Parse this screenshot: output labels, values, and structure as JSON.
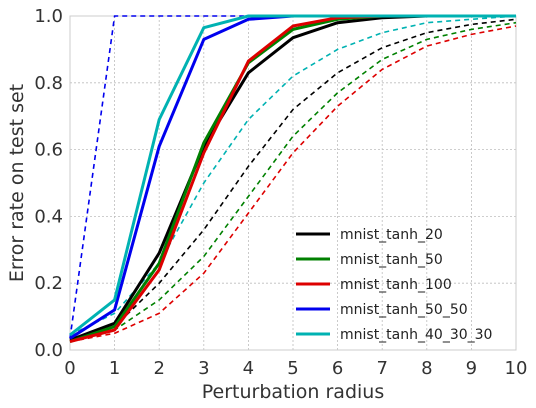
{
  "chart_data": {
    "type": "line",
    "xlabel": "Perturbation radius",
    "ylabel": "Error rate on test set",
    "xlim": [
      0,
      10
    ],
    "ylim": [
      0,
      1
    ],
    "x_ticks": [
      "0",
      "1",
      "2",
      "3",
      "4",
      "5",
      "6",
      "7",
      "8",
      "9",
      "10"
    ],
    "y_ticks": [
      "0.0",
      "0.2",
      "0.4",
      "0.6",
      "0.8",
      "1.0"
    ],
    "grid": true,
    "legend_position": "lower-right",
    "x": [
      0,
      1,
      2,
      3,
      4,
      5,
      6,
      7,
      8,
      9,
      10
    ],
    "series": [
      {
        "name": "mnist_tanh_20",
        "color": "#000000",
        "values": [
          0.03,
          0.08,
          0.29,
          0.61,
          0.83,
          0.935,
          0.98,
          0.995,
          1.0,
          1.0,
          1.0
        ],
        "dashed_values": [
          0.03,
          0.07,
          0.2,
          0.36,
          0.55,
          0.72,
          0.83,
          0.905,
          0.95,
          0.975,
          0.99
        ]
      },
      {
        "name": "mnist_tanh_50",
        "color": "#008000",
        "values": [
          0.025,
          0.07,
          0.26,
          0.62,
          0.86,
          0.96,
          0.99,
          1.0,
          1.0,
          1.0,
          1.0
        ],
        "dashed_values": [
          0.025,
          0.06,
          0.15,
          0.28,
          0.46,
          0.64,
          0.77,
          0.87,
          0.93,
          0.96,
          0.98
        ]
      },
      {
        "name": "mnist_tanh_100",
        "color": "#dd0000",
        "values": [
          0.025,
          0.06,
          0.24,
          0.59,
          0.865,
          0.97,
          0.995,
          1.0,
          1.0,
          1.0,
          1.0
        ],
        "dashed_values": [
          0.025,
          0.05,
          0.11,
          0.23,
          0.41,
          0.59,
          0.73,
          0.84,
          0.91,
          0.945,
          0.97
        ]
      },
      {
        "name": "mnist_tanh_50_50",
        "color": "#0000ee",
        "values": [
          0.035,
          0.12,
          0.61,
          0.93,
          0.99,
          1.0,
          1.0,
          1.0,
          1.0,
          1.0,
          1.0
        ],
        "dashed_values": [
          0.035,
          1.0,
          1.0,
          1.0,
          1.0,
          1.0,
          1.0,
          1.0,
          1.0,
          1.0,
          1.0
        ]
      },
      {
        "name": "mnist_tanh_40_30_30",
        "color": "#00b2b2",
        "values": [
          0.045,
          0.15,
          0.69,
          0.965,
          1.0,
          1.0,
          1.0,
          1.0,
          1.0,
          1.0,
          1.0
        ],
        "dashed_values": [
          0.045,
          0.11,
          0.26,
          0.5,
          0.69,
          0.82,
          0.9,
          0.95,
          0.98,
          0.99,
          1.0
        ]
      }
    ]
  }
}
